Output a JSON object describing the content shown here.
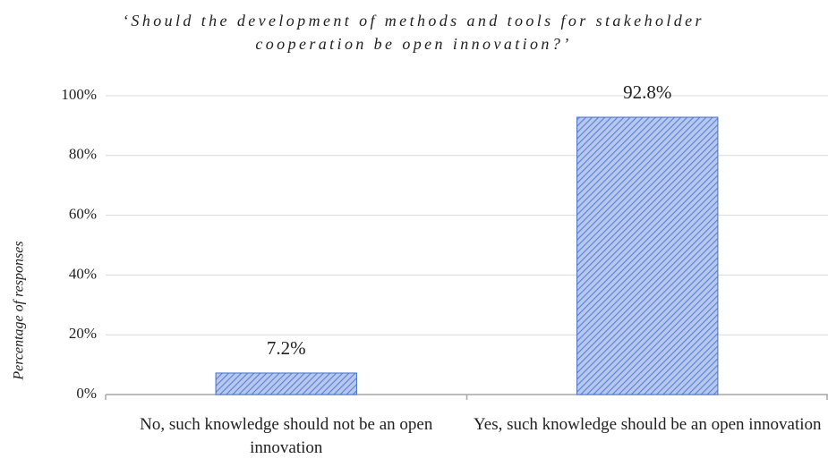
{
  "chart_data": {
    "type": "bar",
    "title": "‘Should the development of methods and tools for stakeholder cooperation be open innovation?’",
    "ylabel": "Percentage of responses",
    "categories": [
      "No, such knowledge should not be an open innovation",
      "Yes, such knowledge should be an open innovation"
    ],
    "values": [
      7.2,
      92.8
    ],
    "value_labels": [
      "7.2%",
      "92.8%"
    ],
    "color": "#4472c4",
    "ylim": [
      0,
      100
    ],
    "yticks": [
      {
        "value": 0,
        "label": "0%"
      },
      {
        "value": 20,
        "label": "20%"
      },
      {
        "value": 40,
        "label": "40%"
      },
      {
        "value": 60,
        "label": "60%"
      },
      {
        "value": 80,
        "label": "80%"
      },
      {
        "value": 100,
        "label": "100%"
      }
    ],
    "grid": true
  }
}
